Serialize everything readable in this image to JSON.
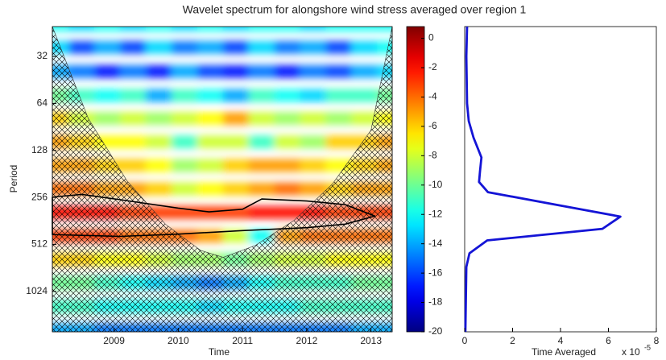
{
  "chart_data": [
    {
      "type": "heatmap",
      "title": "Wavelet spectrum for alongshore wind stress averaged over region 1",
      "xlabel": "Time",
      "ylabel": "Period",
      "x": [
        2008.1,
        2008.5,
        2008.9,
        2009.3,
        2009.7,
        2010.1,
        2010.5,
        2010.9,
        2011.3,
        2011.7,
        2012.1,
        2012.5,
        2012.9,
        2013.3
      ],
      "y": [
        20,
        28,
        40,
        57,
        80,
        113,
        160,
        226,
        320,
        453,
        640,
        905,
        1280,
        1810
      ],
      "z": [
        [
          -12,
          -13,
          -12,
          -13,
          -12,
          -13,
          -12,
          -13,
          -12,
          -12,
          -13,
          -12,
          -12,
          -12
        ],
        [
          -13,
          -16,
          -14,
          -16,
          -13,
          -15,
          -14,
          -16,
          -13,
          -15,
          -14,
          -16,
          -13,
          -12
        ],
        [
          -14,
          -15,
          -17,
          -15,
          -17,
          -14,
          -16,
          -17,
          -15,
          -17,
          -15,
          -16,
          -14,
          -13
        ],
        [
          -10,
          -11,
          -12,
          -11,
          -14,
          -11,
          -12,
          -14,
          -11,
          -12,
          -13,
          -11,
          -11,
          -10
        ],
        [
          -6,
          -8,
          -9,
          -8,
          -9,
          -8,
          -7,
          -5,
          -8,
          -9,
          -8,
          -9,
          -8,
          -7
        ],
        [
          -5,
          -6,
          -7,
          -7,
          -8,
          -11,
          -8,
          -8,
          -11,
          -8,
          -9,
          -6,
          -6,
          -5
        ],
        [
          -5,
          -5,
          -6,
          -6,
          -7,
          -9,
          -8,
          -6,
          -5,
          -5,
          -6,
          -7,
          -6,
          -5
        ],
        [
          -4,
          -4,
          -5,
          -5,
          -6,
          -8,
          -7,
          -6,
          -5,
          -4,
          -5,
          -6,
          -5,
          -5
        ],
        [
          -2,
          -2,
          -2,
          -3,
          -3,
          -3,
          -3,
          -3,
          -2,
          -2,
          -2,
          -3,
          -3,
          -3
        ],
        [
          -3,
          -3,
          -3,
          -4,
          -4,
          -4,
          -5,
          -8,
          -12,
          -5,
          -4,
          -4,
          -4,
          -4
        ],
        [
          -6,
          -6,
          -7,
          -7,
          -8,
          -9,
          -9,
          -10,
          -9,
          -8,
          -8,
          -7,
          -7,
          -7
        ],
        [
          -10,
          -10,
          -11,
          -12,
          -13,
          -14,
          -15,
          -14,
          -12,
          -11,
          -11,
          -11,
          -10,
          -10
        ],
        [
          -11,
          -11,
          -12,
          -12,
          -12,
          -12,
          -13,
          -12,
          -12,
          -12,
          -11,
          -11,
          -11,
          -11
        ],
        [
          -14,
          -14,
          -15,
          -15,
          -15,
          -15,
          -15,
          -15,
          -15,
          -15,
          -15,
          -15,
          -14,
          -14
        ]
      ],
      "xlim": [
        2008.04,
        2013.33
      ],
      "xticks": [
        2009,
        2010,
        2011,
        2012,
        2013
      ],
      "ylim": [
        20.6,
        1860
      ],
      "yticks": [
        32,
        64,
        128,
        256,
        512,
        1024
      ],
      "log_y": true,
      "y_reversed": true,
      "colormap": "jet",
      "coi": {
        "x": [
          2008.04,
          2008.6,
          2009.2,
          2009.8,
          2010.35,
          2010.7,
          2011.2,
          2011.8,
          2012.4,
          2013.0,
          2013.33
        ],
        "period": [
          20.6,
          80,
          200,
          380,
          560,
          620,
          520,
          360,
          210,
          95,
          20.6
        ]
      },
      "contour": {
        "x": [
          2008.04,
          2008.5,
          2009.1,
          2010.0,
          2010.48,
          2011.0,
          2011.3,
          2012.0,
          2012.6,
          2013.06,
          2012.6,
          2012.0,
          2011.0,
          2010.0,
          2009.1,
          2008.04
        ],
        "period": [
          255,
          245,
          265,
          300,
          317,
          305,
          262,
          270,
          285,
          337,
          380,
          400,
          418,
          440,
          455,
          443
        ]
      },
      "colorbar": {
        "lim": [
          -20,
          0.8
        ],
        "ticks": [
          0,
          -2,
          -4,
          -6,
          -8,
          -10,
          -12,
          -14,
          -16,
          -18,
          -20
        ]
      }
    },
    {
      "type": "line",
      "xlabel": "Time Averaged",
      "x_multiplier": "x 10",
      "x_multiplier_exponent": "-5",
      "values": [
        0.1,
        0.07,
        0.1,
        0.17,
        0.37,
        0.7,
        0.64,
        0.6,
        0.97,
        6.5,
        5.75,
        0.94,
        0.2,
        0.07,
        0.03
      ],
      "periods": [
        20.6,
        32,
        64,
        83,
        106,
        142,
        174,
        204,
        237,
        340,
        407,
        483,
        584,
        714,
        1860
      ],
      "color": "#1414d6",
      "xlim": [
        0,
        8
      ],
      "xticks": [
        0,
        2,
        4,
        6,
        8
      ],
      "ylim": [
        20.6,
        1860
      ],
      "log_y": true,
      "y_reversed": true
    }
  ]
}
